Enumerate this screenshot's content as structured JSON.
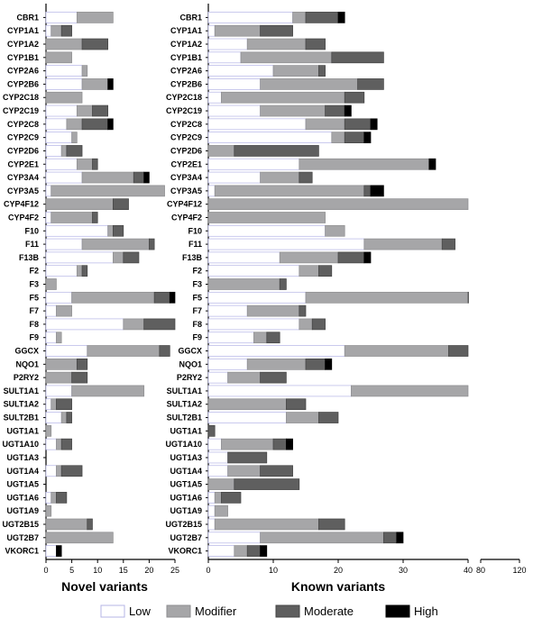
{
  "chart_data": {
    "type": "bar",
    "orientation": "horizontal",
    "stacked": true,
    "categories": [
      "CBR1",
      "CYP1A1",
      "CYP1A2",
      "CYP1B1",
      "CYP2A6",
      "CYP2B6",
      "CYP2C18",
      "CYP2C19",
      "CYP2C8",
      "CYP2C9",
      "CYP2D6",
      "CYP2E1",
      "CYP3A4",
      "CYP3A5",
      "CYP4F12",
      "CYP4F2",
      "F10",
      "F11",
      "F13B",
      "F2",
      "F3",
      "F5",
      "F7",
      "F8",
      "F9",
      "GGCX",
      "NQO1",
      "P2RY2",
      "SULT1A1",
      "SULT1A2",
      "SULT2B1",
      "UGT1A1",
      "UGT1A10",
      "UGT1A3",
      "UGT1A4",
      "UGT1A5",
      "UGT1A6",
      "UGT1A9",
      "UGT2B15",
      "UGT2B7",
      "VKORC1"
    ],
    "legend": {
      "position": "bottom",
      "entries": [
        {
          "name": "Low",
          "color": "#ffffff",
          "stroke": "#b4b4e6"
        },
        {
          "name": "Modifier",
          "color": "#a6a6a8",
          "stroke": "#8e8e90"
        },
        {
          "name": "Moderate",
          "color": "#5f5f5f",
          "stroke": "#444444"
        },
        {
          "name": "High",
          "color": "#000000",
          "stroke": "#000000"
        }
      ]
    },
    "panels": [
      {
        "name": "novel",
        "xlabel": "Novel variants",
        "xlim": [
          0,
          25
        ],
        "xticks": [
          0,
          5,
          10,
          15,
          20,
          25
        ],
        "series": [
          {
            "name": "Low",
            "values": [
              6,
              1,
              0,
              0,
              7,
              7,
              0,
              6,
              4,
              5,
              3,
              6,
              7,
              1,
              0,
              1,
              12,
              7,
              13,
              6,
              0,
              5,
              2,
              15,
              2,
              8,
              0,
              0,
              5,
              1,
              3,
              0,
              2,
              0,
              2,
              0,
              1,
              0,
              0,
              0,
              2
            ]
          },
          {
            "name": "Modifier",
            "values": [
              7,
              2,
              7,
              5,
              1,
              5,
              7,
              3,
              3,
              1,
              1,
              3,
              10,
              22,
              13,
              8,
              1,
              13,
              2,
              1,
              2,
              16,
              3,
              4,
              1,
              14,
              6,
              5,
              14,
              1,
              1,
              1,
              1,
              0,
              1,
              0,
              1,
              1,
              8,
              13,
              0
            ]
          },
          {
            "name": "Moderate",
            "values": [
              0,
              2,
              5,
              0,
              0,
              0,
              0,
              3,
              5,
              0,
              3,
              1,
              2,
              0,
              3,
              1,
              2,
              1,
              3,
              1,
              0,
              3,
              0,
              6,
              0,
              2,
              2,
              3,
              0,
              3,
              1,
              0,
              2,
              0,
              4,
              0,
              2,
              0,
              1,
              0,
              0
            ]
          },
          {
            "name": "High",
            "values": [
              0,
              0,
              0,
              0,
              0,
              1,
              0,
              0,
              1,
              0,
              0,
              0,
              1,
              0,
              0,
              0,
              0,
              0,
              0,
              0,
              0,
              1,
              0,
              0,
              0,
              0,
              0,
              0,
              0,
              0,
              0,
              0,
              0,
              0,
              0,
              0,
              0,
              0,
              0,
              0,
              1
            ]
          }
        ]
      },
      {
        "name": "known",
        "xlabel": "Known variants",
        "xlim": [
          0,
          120
        ],
        "axis_break": [
          40,
          80
        ],
        "xticks": [
          0,
          10,
          20,
          30,
          40,
          80,
          120
        ],
        "series": [
          {
            "name": "Low",
            "values": [
              13,
              1,
              6,
              5,
              10,
              8,
              2,
              8,
              15,
              19,
              0,
              14,
              8,
              1,
              0,
              0,
              18,
              24,
              11,
              14,
              0,
              15,
              6,
              14,
              7,
              21,
              6,
              3,
              22,
              0,
              12,
              0,
              2,
              3,
              3,
              0,
              1,
              1,
              1,
              8,
              4
            ]
          },
          {
            "name": "Modifier",
            "values": [
              2,
              7,
              9,
              14,
              7,
              15,
              19,
              10,
              6,
              2,
              4,
              20,
              6,
              23,
              40,
              18,
              3,
              12,
              9,
              3,
              11,
              25,
              8,
              2,
              2,
              16,
              9,
              5,
              18,
              12,
              5,
              0,
              8,
              0,
              5,
              4,
              1,
              2,
              16,
              19,
              2
            ]
          },
          {
            "name": "Moderate",
            "values": [
              5,
              5,
              3,
              8,
              1,
              4,
              3,
              3,
              4,
              3,
              13,
              0,
              2,
              1,
              0,
              0,
              0,
              2,
              4,
              2,
              1,
              3,
              1,
              2,
              2,
              3,
              3,
              4,
              0,
              3,
              3,
              1,
              2,
              6,
              5,
              10,
              3,
              0,
              4,
              2,
              2
            ]
          },
          {
            "name": "High",
            "values": [
              1,
              0,
              0,
              0,
              0,
              0,
              0,
              1,
              1,
              1,
              0,
              1,
              0,
              2,
              0,
              0,
              0,
              0,
              1,
              0,
              0,
              0,
              0,
              0,
              0,
              0,
              1,
              0,
              0,
              0,
              0,
              0,
              1,
              0,
              0,
              0,
              0,
              0,
              0,
              1,
              1
            ]
          }
        ]
      }
    ]
  }
}
